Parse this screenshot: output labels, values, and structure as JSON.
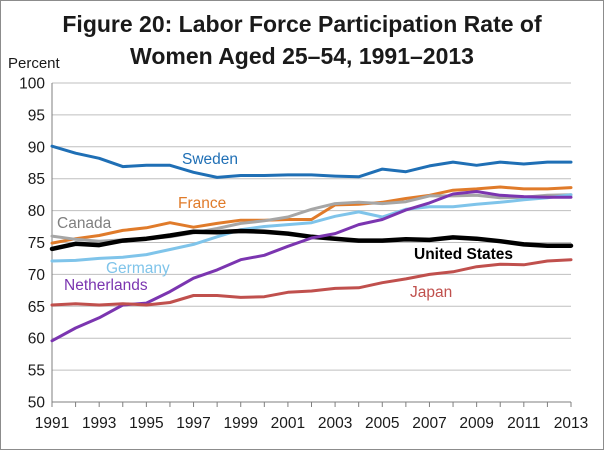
{
  "chart_data": {
    "type": "line",
    "title_line1": "Figure 20: Labor Force Participation Rate of",
    "title_line2": "Women Aged 25–54, 1991–2013",
    "ylabel": "Percent",
    "xlabel": "",
    "ylim": [
      50,
      100
    ],
    "yticks": [
      50,
      55,
      60,
      65,
      70,
      75,
      80,
      85,
      90,
      95,
      100
    ],
    "xlim": [
      1991,
      2013
    ],
    "xticks": [
      1991,
      1993,
      1995,
      1997,
      1999,
      2001,
      2003,
      2005,
      2007,
      2009,
      2011,
      2013
    ],
    "grid": "horizontal",
    "x": [
      1991,
      1992,
      1993,
      1994,
      1995,
      1996,
      1997,
      1998,
      1999,
      2000,
      2001,
      2002,
      2003,
      2004,
      2005,
      2006,
      2007,
      2008,
      2009,
      2010,
      2011,
      2012,
      2013
    ],
    "series": [
      {
        "name": "Sweden",
        "color": "#1f6fb5",
        "values": [
          90.1,
          89.0,
          88.2,
          86.9,
          87.1,
          87.1,
          86.0,
          85.2,
          85.5,
          85.5,
          85.6,
          85.6,
          85.4,
          85.3,
          86.5,
          86.1,
          87.0,
          87.6,
          87.1,
          87.6,
          87.3,
          87.6,
          87.6
        ]
      },
      {
        "name": "France",
        "color": "#e07b2a",
        "values": [
          74.9,
          75.6,
          76.1,
          76.9,
          77.3,
          78.1,
          77.4,
          78.0,
          78.5,
          78.5,
          78.6,
          78.6,
          80.9,
          81.0,
          81.3,
          81.9,
          82.4,
          83.2,
          83.4,
          83.7,
          83.4,
          83.4,
          83.6
        ]
      },
      {
        "name": "Canada",
        "color": "#a6a6a6",
        "values": [
          76.0,
          75.5,
          75.2,
          75.4,
          75.6,
          75.9,
          76.5,
          77.2,
          78.0,
          78.4,
          79.0,
          80.2,
          81.1,
          81.3,
          81.1,
          81.4,
          82.3,
          82.3,
          82.4,
          82.0,
          82.1,
          82.4,
          82.5
        ]
      },
      {
        "name": "Germany",
        "color": "#7fc4ea",
        "values": [
          72.1,
          72.2,
          72.5,
          72.7,
          73.1,
          73.9,
          74.7,
          75.9,
          77.0,
          77.5,
          77.8,
          78.1,
          79.1,
          79.8,
          79.0,
          80.2,
          80.6,
          80.6,
          81.0,
          81.3,
          81.7,
          82.0,
          82.5
        ]
      },
      {
        "name": "United States",
        "color": "#000000",
        "values": [
          74.0,
          74.8,
          74.6,
          75.3,
          75.6,
          76.1,
          76.7,
          76.6,
          76.8,
          76.7,
          76.4,
          75.9,
          75.6,
          75.3,
          75.3,
          75.5,
          75.4,
          75.8,
          75.6,
          75.2,
          74.7,
          74.5,
          74.5
        ]
      },
      {
        "name": "Netherlands",
        "color": "#7b35b0",
        "values": [
          59.6,
          61.6,
          63.2,
          65.2,
          65.5,
          67.3,
          69.4,
          70.7,
          72.3,
          73.0,
          74.4,
          75.7,
          76.4,
          77.8,
          78.6,
          80.1,
          81.2,
          82.6,
          83.0,
          82.4,
          82.2,
          82.1,
          82.1
        ]
      },
      {
        "name": "Japan",
        "color": "#c0504d",
        "values": [
          65.2,
          65.4,
          65.2,
          65.4,
          65.2,
          65.6,
          66.7,
          66.7,
          66.4,
          66.5,
          67.2,
          67.4,
          67.8,
          67.9,
          68.7,
          69.3,
          70.0,
          70.4,
          71.2,
          71.6,
          71.5,
          72.1,
          72.3
        ]
      }
    ],
    "series_labels": [
      "Sweden",
      "France",
      "Canada",
      "Germany",
      "United States",
      "Netherlands",
      "Japan"
    ]
  }
}
